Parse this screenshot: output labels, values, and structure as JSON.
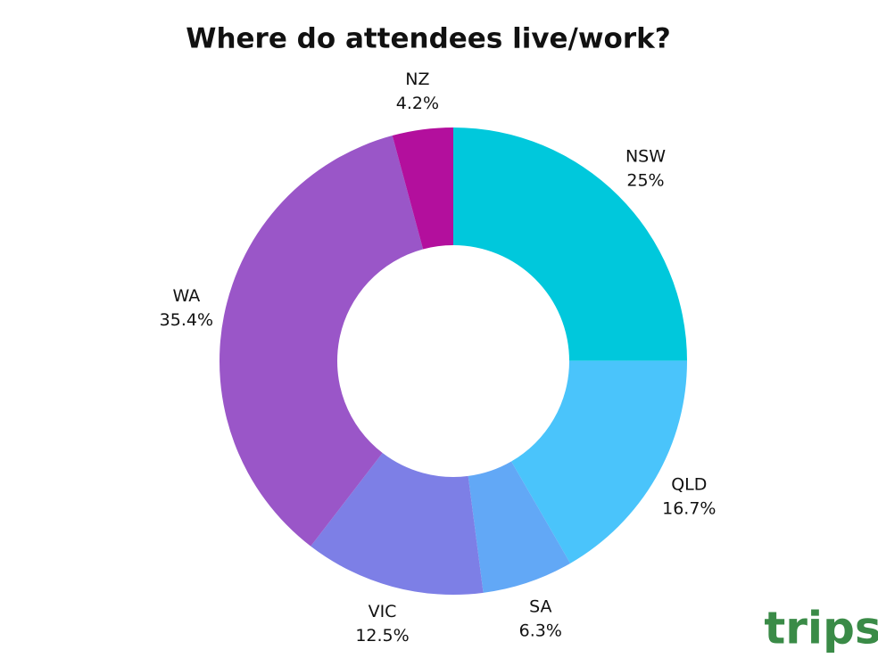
{
  "chart_data": {
    "type": "pie",
    "donut": true,
    "title": "Where do attendees live/work?",
    "categories": [
      "NSW",
      "QLD",
      "SA",
      "VIC",
      "WA",
      "NZ"
    ],
    "values": [
      25,
      16.7,
      6.3,
      12.5,
      35.4,
      4.2
    ],
    "value_labels": [
      "25%",
      "16.7%",
      "6.3%",
      "12.5%",
      "35.4%",
      "4.2%"
    ],
    "colors": [
      "#00c8dc",
      "#4ac4fb",
      "#62a8f6",
      "#7d7fe6",
      "#9a56c8",
      "#b30f9d"
    ]
  },
  "logo": "trips"
}
